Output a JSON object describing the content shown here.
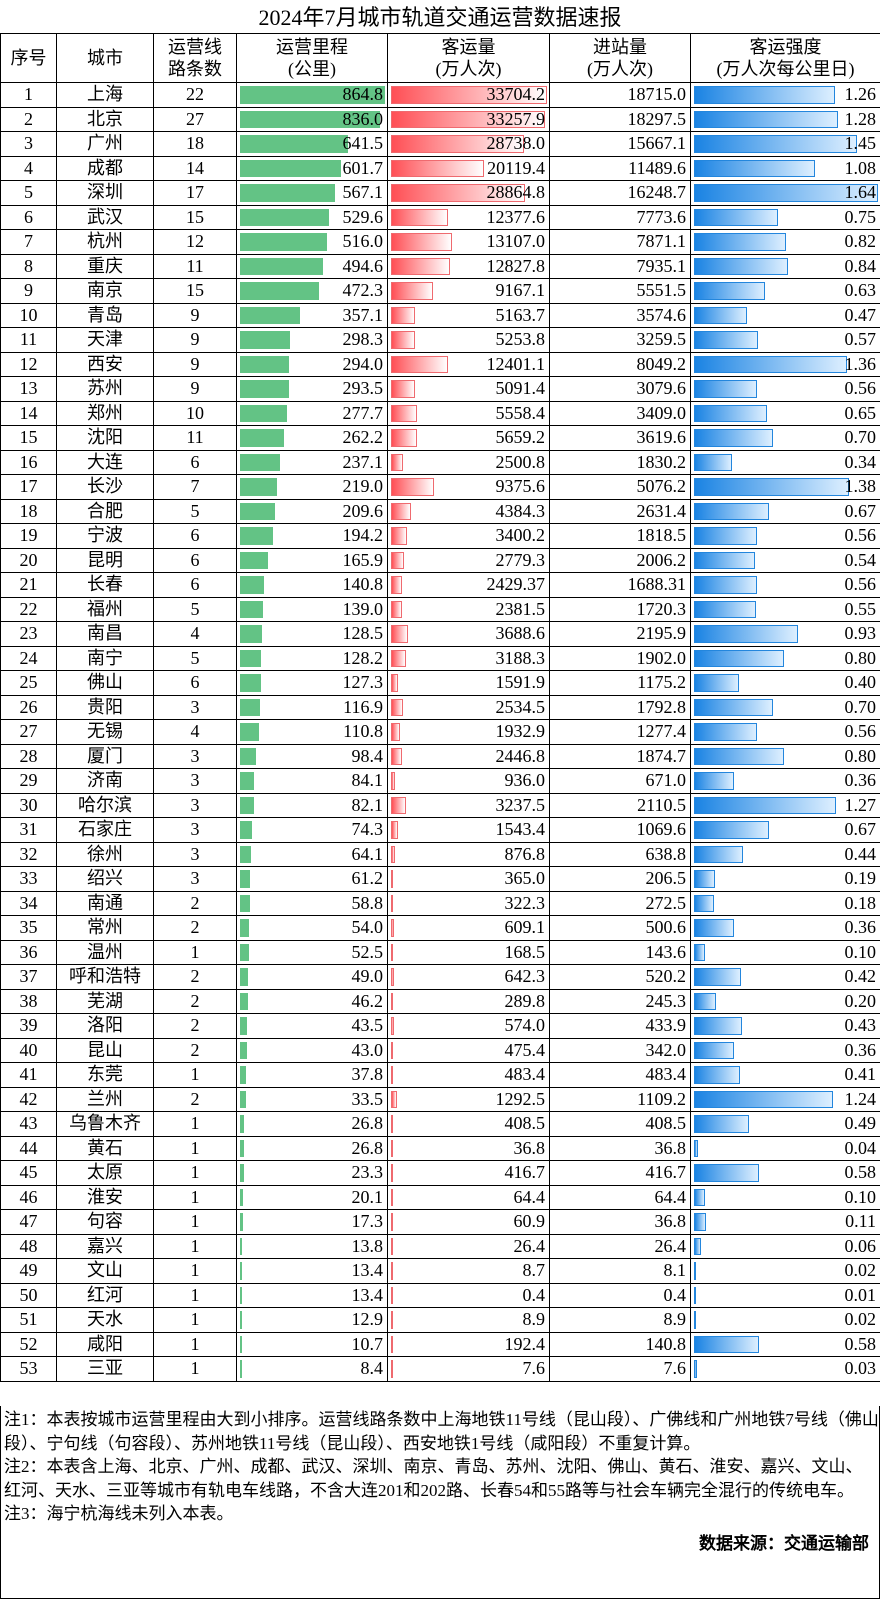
{
  "title": "2024年7月城市轨道交通运营数据速报",
  "headers": {
    "index": "序号",
    "city": "城市",
    "lines_1": "运营线",
    "lines_2": "路条数",
    "mileage_1": "运营里程",
    "mileage_2": "(公里)",
    "ridership_1": "客运量",
    "ridership_2": "(万人次)",
    "entries_1": "进站量",
    "entries_2": "(万人次)",
    "intensity_1": "客运强度",
    "intensity_2": "(万人次每公里日)"
  },
  "colors": {
    "mileage_bar": "#63c385",
    "ridership_bar": "#ff4f55",
    "intensity_bar": "#1a83e3"
  },
  "rows": [
    [
      "1",
      "上海",
      "22",
      "864.8",
      "33704.2",
      "18715.0",
      "1.26"
    ],
    [
      "2",
      "北京",
      "27",
      "836.0",
      "33257.9",
      "18297.5",
      "1.28"
    ],
    [
      "3",
      "广州",
      "18",
      "641.5",
      "28738.0",
      "15667.1",
      "1.45"
    ],
    [
      "4",
      "成都",
      "14",
      "601.7",
      "20119.4",
      "11489.6",
      "1.08"
    ],
    [
      "5",
      "深圳",
      "17",
      "567.1",
      "28864.8",
      "16248.7",
      "1.64"
    ],
    [
      "6",
      "武汉",
      "15",
      "529.6",
      "12377.6",
      "7773.6",
      "0.75"
    ],
    [
      "7",
      "杭州",
      "12",
      "516.0",
      "13107.0",
      "7871.1",
      "0.82"
    ],
    [
      "8",
      "重庆",
      "11",
      "494.6",
      "12827.8",
      "7935.1",
      "0.84"
    ],
    [
      "9",
      "南京",
      "15",
      "472.3",
      "9167.1",
      "5551.5",
      "0.63"
    ],
    [
      "10",
      "青岛",
      "9",
      "357.1",
      "5163.7",
      "3574.6",
      "0.47"
    ],
    [
      "11",
      "天津",
      "9",
      "298.3",
      "5253.8",
      "3259.5",
      "0.57"
    ],
    [
      "12",
      "西安",
      "9",
      "294.0",
      "12401.1",
      "8049.2",
      "1.36"
    ],
    [
      "13",
      "苏州",
      "9",
      "293.5",
      "5091.4",
      "3079.6",
      "0.56"
    ],
    [
      "14",
      "郑州",
      "10",
      "277.7",
      "5558.4",
      "3409.0",
      "0.65"
    ],
    [
      "15",
      "沈阳",
      "11",
      "262.2",
      "5659.2",
      "3619.6",
      "0.70"
    ],
    [
      "16",
      "大连",
      "6",
      "237.1",
      "2500.8",
      "1830.2",
      "0.34"
    ],
    [
      "17",
      "长沙",
      "7",
      "219.0",
      "9375.6",
      "5076.2",
      "1.38"
    ],
    [
      "18",
      "合肥",
      "5",
      "209.6",
      "4384.3",
      "2631.4",
      "0.67"
    ],
    [
      "19",
      "宁波",
      "6",
      "194.2",
      "3400.2",
      "1818.5",
      "0.56"
    ],
    [
      "20",
      "昆明",
      "6",
      "165.9",
      "2779.3",
      "2006.2",
      "0.54"
    ],
    [
      "21",
      "长春",
      "6",
      "140.8",
      "2429.37",
      "1688.31",
      "0.56"
    ],
    [
      "22",
      "福州",
      "5",
      "139.0",
      "2381.5",
      "1720.3",
      "0.55"
    ],
    [
      "23",
      "南昌",
      "4",
      "128.5",
      "3688.6",
      "2195.9",
      "0.93"
    ],
    [
      "24",
      "南宁",
      "5",
      "128.2",
      "3188.3",
      "1902.0",
      "0.80"
    ],
    [
      "25",
      "佛山",
      "6",
      "127.3",
      "1591.9",
      "1175.2",
      "0.40"
    ],
    [
      "26",
      "贵阳",
      "3",
      "116.9",
      "2534.5",
      "1792.8",
      "0.70"
    ],
    [
      "27",
      "无锡",
      "4",
      "110.8",
      "1932.9",
      "1277.4",
      "0.56"
    ],
    [
      "28",
      "厦门",
      "3",
      "98.4",
      "2446.8",
      "1874.7",
      "0.80"
    ],
    [
      "29",
      "济南",
      "3",
      "84.1",
      "936.0",
      "671.0",
      "0.36"
    ],
    [
      "30",
      "哈尔滨",
      "3",
      "82.1",
      "3237.5",
      "2110.5",
      "1.27"
    ],
    [
      "31",
      "石家庄",
      "3",
      "74.3",
      "1543.4",
      "1069.6",
      "0.67"
    ],
    [
      "32",
      "徐州",
      "3",
      "64.1",
      "876.8",
      "638.8",
      "0.44"
    ],
    [
      "33",
      "绍兴",
      "3",
      "61.2",
      "365.0",
      "206.5",
      "0.19"
    ],
    [
      "34",
      "南通",
      "2",
      "58.8",
      "322.3",
      "272.5",
      "0.18"
    ],
    [
      "35",
      "常州",
      "2",
      "54.0",
      "609.1",
      "500.6",
      "0.36"
    ],
    [
      "36",
      "温州",
      "1",
      "52.5",
      "168.5",
      "143.6",
      "0.10"
    ],
    [
      "37",
      "呼和浩特",
      "2",
      "49.0",
      "642.3",
      "520.2",
      "0.42"
    ],
    [
      "38",
      "芜湖",
      "2",
      "46.2",
      "289.8",
      "245.3",
      "0.20"
    ],
    [
      "39",
      "洛阳",
      "2",
      "43.5",
      "574.0",
      "433.9",
      "0.43"
    ],
    [
      "40",
      "昆山",
      "2",
      "43.0",
      "475.4",
      "342.0",
      "0.36"
    ],
    [
      "41",
      "东莞",
      "1",
      "37.8",
      "483.4",
      "483.4",
      "0.41"
    ],
    [
      "42",
      "兰州",
      "2",
      "33.5",
      "1292.5",
      "1109.2",
      "1.24"
    ],
    [
      "43",
      "乌鲁木齐",
      "1",
      "26.8",
      "408.5",
      "408.5",
      "0.49"
    ],
    [
      "44",
      "黄石",
      "1",
      "26.8",
      "36.8",
      "36.8",
      "0.04"
    ],
    [
      "45",
      "太原",
      "1",
      "23.3",
      "416.7",
      "416.7",
      "0.58"
    ],
    [
      "46",
      "淮安",
      "1",
      "20.1",
      "64.4",
      "64.4",
      "0.10"
    ],
    [
      "47",
      "句容",
      "1",
      "17.3",
      "60.9",
      "36.8",
      "0.11"
    ],
    [
      "48",
      "嘉兴",
      "1",
      "13.8",
      "26.4",
      "26.4",
      "0.06"
    ],
    [
      "49",
      "文山",
      "1",
      "13.4",
      "8.7",
      "8.1",
      "0.02"
    ],
    [
      "50",
      "红河",
      "1",
      "13.4",
      "0.4",
      "0.4",
      "0.01"
    ],
    [
      "51",
      "天水",
      "1",
      "12.9",
      "8.9",
      "8.9",
      "0.02"
    ],
    [
      "52",
      "咸阳",
      "1",
      "10.7",
      "192.4",
      "140.8",
      "0.58"
    ],
    [
      "53",
      "三亚",
      "1",
      "8.4",
      "7.6",
      "7.6",
      "0.03"
    ]
  ],
  "notes": {
    "note1": "注1：本表按城市运营里程由大到小排序。运营线路条数中上海地铁11号线（昆山段）、广佛线和广州地铁7号线（佛山段）、宁句线（句容段）、苏州地铁11号线（昆山段）、西安地铁1号线（咸阳段）不重复计算。",
    "note2": "注2：本表含上海、北京、广州、成都、武汉、深圳、南京、青岛、苏州、沈阳、佛山、黄石、淮安、嘉兴、文山、红河、天水、三亚等城市有轨电车线路，不含大连201和202路、长春54和55路等与社会车辆完全混行的传统电车。",
    "note3": "注3：海宁杭海线未列入本表。",
    "source": "数据来源：交通运输部"
  }
}
